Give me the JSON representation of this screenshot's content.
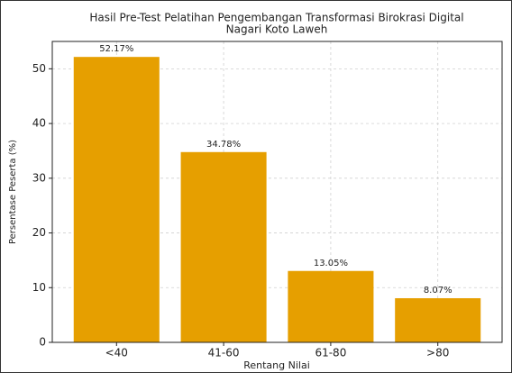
{
  "chart_data": {
    "type": "bar",
    "title": [
      "Hasil Pre-Test Pelatihan Pengembangan Transformasi Birokrasi Digital",
      "Nagari Koto Laweh"
    ],
    "xlabel": "Rentang Nilai",
    "ylabel": "Persentase Peserta (%)",
    "categories": [
      "<40",
      "41-60",
      "61-80",
      ">80"
    ],
    "values": [
      52.17,
      34.78,
      13.05,
      8.07
    ],
    "value_labels": [
      "52.17%",
      "34.78%",
      "13.05%",
      "8.07%"
    ],
    "color": "#e69f00",
    "ylim": [
      0,
      55
    ],
    "yticks": [
      0,
      10,
      20,
      30,
      40,
      50
    ],
    "grid": true
  }
}
